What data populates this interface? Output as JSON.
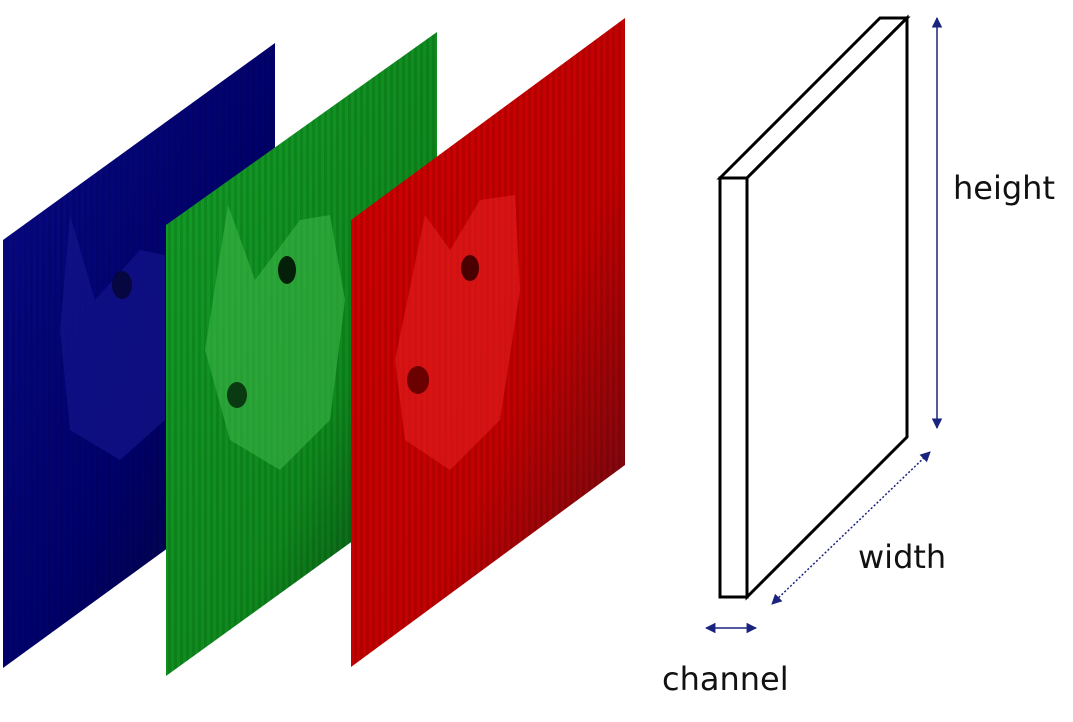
{
  "channels": [
    {
      "name": "blue",
      "base": "#00006e",
      "dark": "#05052a",
      "fur": "#1a1a9a"
    },
    {
      "name": "green",
      "base": "#0d8a1c",
      "dark": "#063410",
      "fur": "#2fa43a"
    },
    {
      "name": "red",
      "base": "#c40000",
      "dark": "#5a0a14",
      "fur": "#e01a1a"
    }
  ],
  "labels": {
    "height": "height",
    "width": "width",
    "channel": "channel"
  },
  "colors": {
    "arrow": "#1a237e",
    "tensor_stroke": "#000000"
  }
}
